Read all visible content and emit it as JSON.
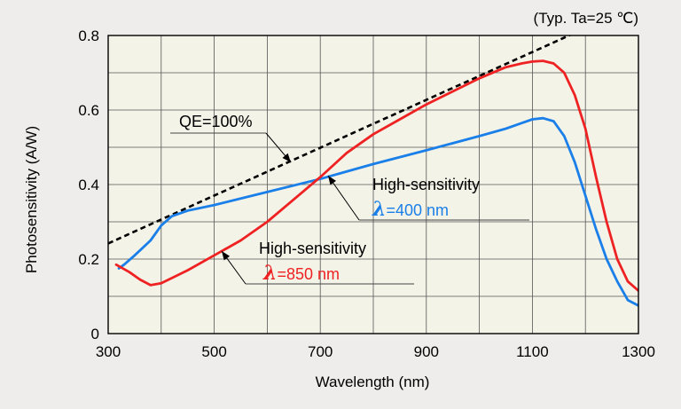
{
  "chart_data": {
    "type": "line",
    "title": "",
    "condition_note": "(Typ. Ta=25 ℃)",
    "xlabel": "Wavelength (nm)",
    "ylabel": "Photosensitivity (A/W)",
    "xlim": [
      300,
      1300
    ],
    "ylim": [
      0,
      0.8
    ],
    "x_ticks": [
      300,
      500,
      700,
      900,
      1100,
      1300
    ],
    "x_tick_labels": [
      "300",
      "500",
      "700",
      "900",
      "1100",
      "1300"
    ],
    "y_ticks": [
      0,
      0.2,
      0.4,
      0.6,
      0.8
    ],
    "y_tick_labels": [
      "0",
      "0.2",
      "0.4",
      "0.6",
      "0.8"
    ],
    "x_grid_step": 100,
    "y_grid_step": 0.1,
    "grid": true,
    "series": [
      {
        "name": "QE=100%",
        "style": "dashed",
        "color": "#000000",
        "x": [
          300,
          1172
        ],
        "y": [
          0.242,
          0.802
        ]
      },
      {
        "name": "High-sensitivity λ=400 nm",
        "style": "solid",
        "color": "#1a7fe8",
        "x": [
          320,
          330,
          350,
          380,
          400,
          420,
          450,
          500,
          600,
          700,
          800,
          900,
          1000,
          1050,
          1080,
          1100,
          1120,
          1140,
          1160,
          1180,
          1200,
          1220,
          1240,
          1260,
          1280,
          1300
        ],
        "y": [
          0.175,
          0.185,
          0.21,
          0.25,
          0.29,
          0.315,
          0.33,
          0.345,
          0.38,
          0.415,
          0.455,
          0.492,
          0.53,
          0.55,
          0.565,
          0.575,
          0.578,
          0.57,
          0.53,
          0.46,
          0.37,
          0.28,
          0.2,
          0.14,
          0.09,
          0.075
        ]
      },
      {
        "name": "High-sensitivity λ=850 nm",
        "style": "solid",
        "color": "#ee2222",
        "x": [
          315,
          340,
          360,
          380,
          400,
          450,
          500,
          550,
          600,
          650,
          700,
          750,
          800,
          850,
          900,
          950,
          1000,
          1050,
          1080,
          1100,
          1120,
          1140,
          1160,
          1180,
          1200,
          1220,
          1240,
          1260,
          1280,
          1300
        ],
        "y": [
          0.185,
          0.165,
          0.145,
          0.13,
          0.135,
          0.17,
          0.21,
          0.25,
          0.3,
          0.36,
          0.42,
          0.485,
          0.535,
          0.575,
          0.615,
          0.65,
          0.685,
          0.715,
          0.725,
          0.73,
          0.732,
          0.725,
          0.7,
          0.64,
          0.55,
          0.42,
          0.3,
          0.2,
          0.14,
          0.115
        ]
      }
    ],
    "annotations": [
      {
        "name": "annotation-qe",
        "text_parts": [
          "QE=100%"
        ],
        "colors": [
          "#000000"
        ]
      },
      {
        "name": "annotation-400",
        "text_parts": [
          "High-sensitivity",
          "λ",
          "=400 nm"
        ],
        "colors": [
          "#000000",
          "#1a7fe8",
          "#1a7fe8"
        ]
      },
      {
        "name": "annotation-850",
        "text_parts": [
          "High-sensitivity",
          "λ",
          "=850 nm"
        ],
        "colors": [
          "#000000",
          "#ee2222",
          "#ee2222"
        ]
      }
    ],
    "plot_background": "#f4f3e8"
  }
}
